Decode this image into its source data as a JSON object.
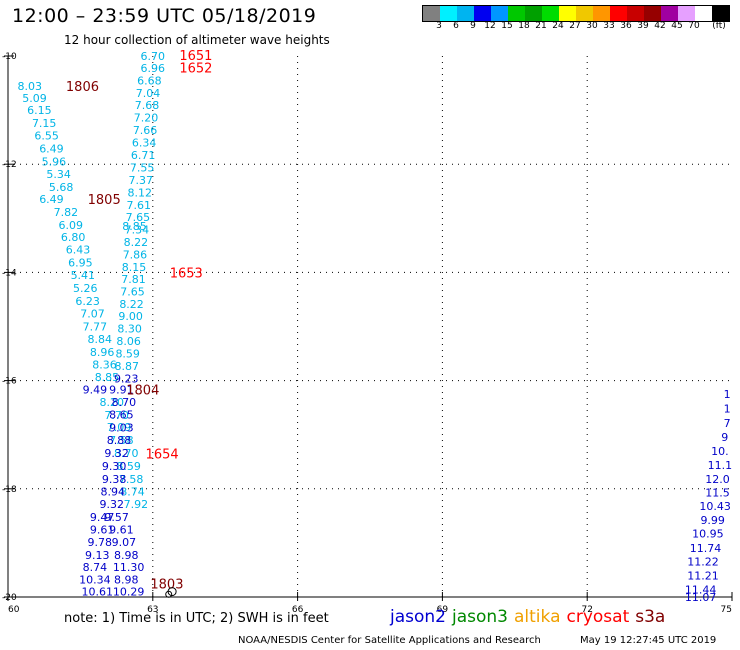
{
  "header": {
    "title": "12:00 – 23:59 UTC 05/18/2019",
    "subtitle": "12 hour collection of altimeter wave heights"
  },
  "legend": {
    "colors": [
      "#808080",
      "#00f0ff",
      "#00b4f0",
      "#0000f0",
      "#0096ff",
      "#00c800",
      "#00a000",
      "#00dc00",
      "#ffff00",
      "#f0c800",
      "#ff9600",
      "#ff0000",
      "#c80000",
      "#960000",
      "#a000a0",
      "#e6a0ff",
      "#ffffff",
      "#000000"
    ],
    "ticks": [
      "3",
      "6",
      "9",
      "12",
      "15",
      "18",
      "21",
      "24",
      "27",
      "30",
      "33",
      "36",
      "39",
      "42",
      "45",
      "70",
      "(ft)"
    ]
  },
  "footer": {
    "note": "note:  1) Time is in UTC;  2) SWH is in feet",
    "credit": "NOAA/NESDIS Center for Satellite Applications and Research",
    "timestamp": "May 19 12:27:45 UTC 2019"
  },
  "satellites": [
    {
      "name": "jason2",
      "color": "#0000d0"
    },
    {
      "name": "jason3",
      "color": "#008800"
    },
    {
      "name": "altika",
      "color": "#f0a000"
    },
    {
      "name": "cryosat",
      "color": "#ff0000"
    },
    {
      "name": "s3a",
      "color": "#800000"
    }
  ],
  "chart_data": {
    "type": "scatter",
    "title": "12:00 – 23:59 UTC 05/18/2019",
    "xlim": [
      60,
      75
    ],
    "ylim": [
      -20,
      -10
    ],
    "x_ticks": [
      60,
      63,
      66,
      69,
      72,
      75
    ],
    "y_ticks": [
      -10,
      -12,
      -14,
      -16,
      -18,
      -20
    ],
    "grid": true,
    "series": [
      {
        "name": "jason3",
        "color": "#00b4e6",
        "points": [
          {
            "x": 60.45,
            "y": -10.55,
            "v": "8.03"
          },
          {
            "x": 60.55,
            "y": -10.78,
            "v": "5.09"
          },
          {
            "x": 60.65,
            "y": -11.0,
            "v": "6.15"
          },
          {
            "x": 60.75,
            "y": -11.24,
            "v": "7.15"
          },
          {
            "x": 60.8,
            "y": -11.47,
            "v": "6.55"
          },
          {
            "x": 60.9,
            "y": -11.71,
            "v": "6.49"
          },
          {
            "x": 60.95,
            "y": -11.95,
            "v": "5.96"
          },
          {
            "x": 61.05,
            "y": -12.18,
            "v": "5.34"
          },
          {
            "x": 61.1,
            "y": -12.42,
            "v": "5.68"
          },
          {
            "x": 60.9,
            "y": -12.64,
            "v": "6.49"
          },
          {
            "x": 61.2,
            "y": -12.88,
            "v": "7.82"
          },
          {
            "x": 61.3,
            "y": -13.12,
            "v": "6.09"
          },
          {
            "x": 61.35,
            "y": -13.35,
            "v": "6.80"
          },
          {
            "x": 61.45,
            "y": -13.58,
            "v": "6.43"
          },
          {
            "x": 61.5,
            "y": -13.82,
            "v": "6.95"
          },
          {
            "x": 61.55,
            "y": -14.05,
            "v": "5.41"
          },
          {
            "x": 61.6,
            "y": -14.29,
            "v": "5.26"
          },
          {
            "x": 61.65,
            "y": -14.53,
            "v": "6.23"
          },
          {
            "x": 61.75,
            "y": -14.76,
            "v": "7.07"
          },
          {
            "x": 61.8,
            "y": -15.0,
            "v": "7.77"
          },
          {
            "x": 61.9,
            "y": -15.23,
            "v": "8.84"
          },
          {
            "x": 61.95,
            "y": -15.47,
            "v": "8.96"
          },
          {
            "x": 62.0,
            "y": -15.7,
            "v": "8.36"
          },
          {
            "x": 62.05,
            "y": -15.93,
            "v": "8.85"
          },
          {
            "x": 62.15,
            "y": -16.4,
            "v": "8.20"
          },
          {
            "x": 62.25,
            "y": -16.64,
            "v": "7.70"
          },
          {
            "x": 62.3,
            "y": -16.86,
            "v": "7.09"
          },
          {
            "x": 62.35,
            "y": -17.1,
            "v": "7.58"
          },
          {
            "x": 62.45,
            "y": -17.34,
            "v": "8.70"
          },
          {
            "x": 62.5,
            "y": -17.58,
            "v": "8.59"
          },
          {
            "x": 62.55,
            "y": -17.82,
            "v": "7.58"
          },
          {
            "x": 62.58,
            "y": -18.05,
            "v": "8.74"
          },
          {
            "x": 62.65,
            "y": -18.28,
            "v": "7.92"
          },
          {
            "x": 62.62,
            "y": -13.14,
            "v": "8.85"
          },
          {
            "x": 63.0,
            "y": -10.0,
            "v": "6.70"
          },
          {
            "x": 63.0,
            "y": -10.22,
            "v": "6.96"
          },
          {
            "x": 62.93,
            "y": -10.45,
            "v": "6.68"
          },
          {
            "x": 62.9,
            "y": -10.68,
            "v": "7.04"
          },
          {
            "x": 62.88,
            "y": -10.91,
            "v": "7.68"
          },
          {
            "x": 62.86,
            "y": -11.14,
            "v": "7.20"
          },
          {
            "x": 62.84,
            "y": -11.37,
            "v": "7.66"
          },
          {
            "x": 62.82,
            "y": -11.6,
            "v": "6.34"
          },
          {
            "x": 62.8,
            "y": -11.83,
            "v": "6.71"
          },
          {
            "x": 62.78,
            "y": -12.06,
            "v": "7.55"
          },
          {
            "x": 62.75,
            "y": -12.29,
            "v": "7.37"
          },
          {
            "x": 62.73,
            "y": -12.52,
            "v": "8.12"
          },
          {
            "x": 62.71,
            "y": -12.75,
            "v": "7.61"
          },
          {
            "x": 62.69,
            "y": -12.98,
            "v": "7.65"
          },
          {
            "x": 62.67,
            "y": -13.21,
            "v": "7.34"
          },
          {
            "x": 62.65,
            "y": -13.44,
            "v": "8.22"
          },
          {
            "x": 62.63,
            "y": -13.67,
            "v": "7.86"
          },
          {
            "x": 62.61,
            "y": -13.9,
            "v": "8.15"
          },
          {
            "x": 62.6,
            "y": -14.12,
            "v": "7.81"
          },
          {
            "x": 62.58,
            "y": -14.35,
            "v": "7.65"
          },
          {
            "x": 62.56,
            "y": -14.58,
            "v": "8.22"
          },
          {
            "x": 62.54,
            "y": -14.81,
            "v": "9.00"
          },
          {
            "x": 62.52,
            "y": -15.04,
            "v": "8.30"
          },
          {
            "x": 62.5,
            "y": -15.27,
            "v": "8.06"
          },
          {
            "x": 62.48,
            "y": -15.5,
            "v": "8.59"
          },
          {
            "x": 62.46,
            "y": -15.73,
            "v": "8.87"
          }
        ]
      },
      {
        "name": "jason2",
        "color": "#0000c8",
        "points": [
          {
            "x": 62.45,
            "y": -15.96,
            "v": "9.23"
          },
          {
            "x": 61.8,
            "y": -16.16,
            "v": "9.49"
          },
          {
            "x": 62.35,
            "y": -16.16,
            "v": "9.91"
          },
          {
            "x": 62.4,
            "y": -16.4,
            "v": "8.70"
          },
          {
            "x": 62.35,
            "y": -16.63,
            "v": "8.65"
          },
          {
            "x": 62.35,
            "y": -16.87,
            "v": "9.03"
          },
          {
            "x": 62.3,
            "y": -17.1,
            "v": "8.88"
          },
          {
            "x": 62.25,
            "y": -17.34,
            "v": "9.32"
          },
          {
            "x": 62.2,
            "y": -17.58,
            "v": "9.30"
          },
          {
            "x": 62.2,
            "y": -17.82,
            "v": "9.38"
          },
          {
            "x": 62.17,
            "y": -18.05,
            "v": "8.94"
          },
          {
            "x": 62.15,
            "y": -18.28,
            "v": "9.32"
          },
          {
            "x": 62.25,
            "y": -18.52,
            "v": "9.57"
          },
          {
            "x": 62.35,
            "y": -18.75,
            "v": "9.61"
          },
          {
            "x": 62.4,
            "y": -18.98,
            "v": "9.07"
          },
          {
            "x": 62.45,
            "y": -19.22,
            "v": "8.98"
          },
          {
            "x": 62.5,
            "y": -19.45,
            "v": "11.30"
          },
          {
            "x": 62.45,
            "y": -19.68,
            "v": "8.98"
          },
          {
            "x": 62.5,
            "y": -19.9,
            "v": "10.29"
          },
          {
            "x": 61.95,
            "y": -18.52,
            "v": "9.47"
          },
          {
            "x": 61.95,
            "y": -18.75,
            "v": "9.61"
          },
          {
            "x": 61.9,
            "y": -18.98,
            "v": "9.78"
          },
          {
            "x": 61.85,
            "y": -19.22,
            "v": "9.13"
          },
          {
            "x": 61.8,
            "y": -19.45,
            "v": "8.74"
          },
          {
            "x": 61.8,
            "y": -19.68,
            "v": "10.34"
          },
          {
            "x": 61.85,
            "y": -19.9,
            "v": "10.61"
          },
          {
            "x": 74.9,
            "y": -16.25,
            "v": "1"
          },
          {
            "x": 74.9,
            "y": -16.52,
            "v": "1"
          },
          {
            "x": 74.9,
            "y": -16.78,
            "v": "7"
          },
          {
            "x": 74.85,
            "y": -17.04,
            "v": "9"
          },
          {
            "x": 74.75,
            "y": -17.3,
            "v": "10."
          },
          {
            "x": 74.75,
            "y": -17.56,
            "v": "11.1"
          },
          {
            "x": 74.7,
            "y": -17.82,
            "v": "12.0"
          },
          {
            "x": 74.7,
            "y": -18.07,
            "v": "11.5"
          },
          {
            "x": 74.65,
            "y": -18.32,
            "v": "10.43"
          },
          {
            "x": 74.6,
            "y": -18.58,
            "v": "9.99"
          },
          {
            "x": 74.5,
            "y": -18.83,
            "v": "10.95"
          },
          {
            "x": 74.45,
            "y": -19.09,
            "v": "11.74"
          },
          {
            "x": 74.4,
            "y": -19.34,
            "v": "11.22"
          },
          {
            "x": 74.4,
            "y": -19.6,
            "v": "11.21"
          },
          {
            "x": 74.35,
            "y": -19.86,
            "v": "11.44"
          },
          {
            "x": 74.35,
            "y": -20.0,
            "v": "11.07"
          }
        ]
      }
    ],
    "time_labels": [
      {
        "text": "1651",
        "x": 63.55,
        "y": -9.98,
        "color": "#ff0000"
      },
      {
        "text": "1652",
        "x": 63.55,
        "y": -10.21,
        "color": "#ff0000"
      },
      {
        "text": "1806",
        "x": 61.2,
        "y": -10.55,
        "color": "#800000"
      },
      {
        "text": "1805",
        "x": 61.65,
        "y": -12.64,
        "color": "#800000"
      },
      {
        "text": "1653",
        "x": 63.35,
        "y": -14.0,
        "color": "#ff0000"
      },
      {
        "text": "1804",
        "x": 62.45,
        "y": -16.16,
        "color": "#800000"
      },
      {
        "text": "1654",
        "x": 62.85,
        "y": -17.35,
        "color": "#ff0000"
      },
      {
        "text": "1803",
        "x": 62.95,
        "y": -19.75,
        "color": "#800000"
      }
    ]
  }
}
